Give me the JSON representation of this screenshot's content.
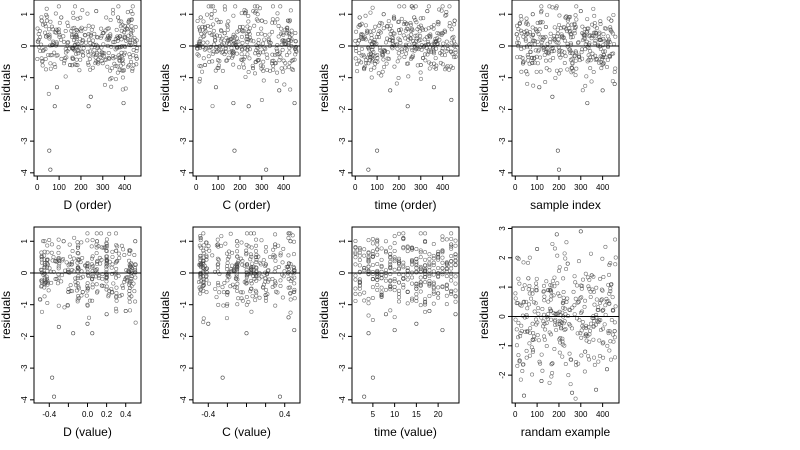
{
  "chart_data": [
    {
      "type": "scatter",
      "xlabel": "D (order)",
      "ylabel": "residuals",
      "xlim": [
        -15,
        475
      ],
      "ylim": [
        -4.1,
        1.45
      ],
      "xticks": [
        0,
        100,
        200,
        300,
        400
      ],
      "yticks": [
        -4,
        -3,
        -2,
        -1,
        0,
        1
      ],
      "hline": 0,
      "points": [
        [
          20,
          0.8
        ],
        [
          40,
          0.3
        ],
        [
          55,
          -3.3
        ],
        [
          60,
          -3.9
        ],
        [
          80,
          -1.9
        ],
        [
          90,
          -1.3
        ],
        [
          110,
          0.9
        ],
        [
          150,
          -0.6
        ],
        [
          180,
          0.5
        ],
        [
          210,
          -0.3
        ],
        [
          235,
          -1.9
        ],
        [
          245,
          -1.6
        ],
        [
          270,
          1.1
        ],
        [
          300,
          0.4
        ],
        [
          330,
          -0.4
        ],
        [
          370,
          0.9
        ],
        [
          395,
          -1.8
        ],
        [
          430,
          0.5
        ],
        [
          455,
          -0.4
        ]
      ]
    },
    {
      "type": "scatter",
      "xlabel": "C (order)",
      "ylabel": "residuals",
      "xlim": [
        -15,
        475
      ],
      "ylim": [
        -4.1,
        1.45
      ],
      "xticks": [
        0,
        100,
        200,
        300,
        400
      ],
      "yticks": [
        -4,
        -3,
        -2,
        -1,
        0,
        1
      ],
      "hline": 0,
      "points": [
        [
          20,
          0.9
        ],
        [
          40,
          -0.6
        ],
        [
          70,
          1.0
        ],
        [
          90,
          -1.3
        ],
        [
          130,
          0.4
        ],
        [
          170,
          -1.8
        ],
        [
          175,
          -3.3
        ],
        [
          200,
          0.6
        ],
        [
          240,
          -1.9
        ],
        [
          260,
          -0.7
        ],
        [
          300,
          0.8
        ],
        [
          320,
          -3.9
        ],
        [
          340,
          0.1
        ],
        [
          380,
          -1.4
        ],
        [
          420,
          0.8
        ],
        [
          450,
          -1.8
        ]
      ]
    },
    {
      "type": "scatter",
      "xlabel": "time (order)",
      "ylabel": "residuals",
      "xlim": [
        -15,
        475
      ],
      "ylim": [
        -4.1,
        1.45
      ],
      "xticks": [
        0,
        100,
        200,
        300,
        400
      ],
      "yticks": [
        -4,
        -3,
        -2,
        -1,
        0,
        1
      ],
      "hline": 0,
      "points": [
        [
          20,
          0.9
        ],
        [
          40,
          -0.7
        ],
        [
          60,
          -3.9
        ],
        [
          100,
          -3.3
        ],
        [
          130,
          1.0
        ],
        [
          160,
          -1.4
        ],
        [
          200,
          0.5
        ],
        [
          240,
          -1.9
        ],
        [
          270,
          0.9
        ],
        [
          300,
          -0.6
        ],
        [
          330,
          1.1
        ],
        [
          360,
          -1.3
        ],
        [
          400,
          0.4
        ],
        [
          440,
          -1.7
        ],
        [
          455,
          0.8
        ]
      ]
    },
    {
      "type": "scatter",
      "xlabel": "sample index",
      "ylabel": "residuals",
      "xlim": [
        -15,
        475
      ],
      "ylim": [
        -4.1,
        1.45
      ],
      "xticks": [
        0,
        100,
        200,
        300,
        400
      ],
      "yticks": [
        -4,
        -3,
        -2,
        -1,
        0,
        1
      ],
      "hline": 0,
      "points": [
        [
          20,
          0.7
        ],
        [
          50,
          -0.8
        ],
        [
          80,
          1.0
        ],
        [
          110,
          -1.3
        ],
        [
          140,
          0.6
        ],
        [
          170,
          -1.6
        ],
        [
          195,
          -3.3
        ],
        [
          200,
          -3.9
        ],
        [
          230,
          0.9
        ],
        [
          260,
          -0.7
        ],
        [
          300,
          1.1
        ],
        [
          330,
          -1.8
        ],
        [
          370,
          0.4
        ],
        [
          400,
          -1.4
        ],
        [
          440,
          0.8
        ],
        [
          455,
          -1.2
        ]
      ]
    },
    {
      "type": "scatter",
      "xlabel": "D (value)",
      "ylabel": "residuals",
      "xlim": [
        -0.56,
        0.56
      ],
      "ylim": [
        -4.1,
        1.45
      ],
      "xticks": [
        -0.4,
        -0.2,
        0.0,
        0.2,
        0.4
      ],
      "xticklabels": [
        "-0.4",
        "",
        "0.0",
        "0.2",
        "0.4"
      ],
      "yticks": [
        -4,
        -3,
        -2,
        -1,
        0,
        1
      ],
      "hline": 0,
      "points": [
        [
          -0.48,
          0.5
        ],
        [
          -0.44,
          -0.3
        ],
        [
          -0.37,
          -3.3
        ],
        [
          -0.35,
          -3.9
        ],
        [
          -0.3,
          -1.7
        ],
        [
          -0.25,
          1.0
        ],
        [
          -0.2,
          -0.6
        ],
        [
          -0.15,
          -1.9
        ],
        [
          -0.1,
          0.8
        ],
        [
          -0.05,
          -0.6
        ],
        [
          0.0,
          -1.6
        ],
        [
          0.05,
          -1.9
        ],
        [
          0.1,
          1.0
        ],
        [
          0.15,
          -0.4
        ],
        [
          0.2,
          -1.3
        ],
        [
          0.3,
          0.7
        ],
        [
          0.4,
          -1.2
        ],
        [
          0.5,
          1.0
        ]
      ]
    },
    {
      "type": "scatter",
      "xlabel": "C (value)",
      "ylabel": "residuals",
      "xlim": [
        -0.56,
        0.56
      ],
      "ylim": [
        -4.1,
        1.45
      ],
      "xticks": [
        -0.4,
        -0.2,
        0.0,
        0.2,
        0.4
      ],
      "xticklabels": [
        "-0.4",
        "",
        "",
        "",
        "0.4"
      ],
      "yticks": [
        -4,
        -3,
        -2,
        -1,
        0,
        1
      ],
      "hline": 0,
      "points": [
        [
          -0.48,
          1.1
        ],
        [
          -0.45,
          -0.4
        ],
        [
          -0.4,
          -1.6
        ],
        [
          -0.3,
          0.9
        ],
        [
          -0.25,
          -3.3
        ],
        [
          -0.2,
          -0.6
        ],
        [
          -0.1,
          1.0
        ],
        [
          0.0,
          -1.9
        ],
        [
          0.1,
          0.5
        ],
        [
          0.2,
          -0.7
        ],
        [
          0.3,
          0.9
        ],
        [
          0.35,
          -3.9
        ],
        [
          0.44,
          -1.4
        ],
        [
          0.46,
          1.0
        ],
        [
          0.5,
          -1.8
        ]
      ]
    },
    {
      "type": "scatter",
      "xlabel": "time (value)",
      "ylabel": "residuals",
      "xlim": [
        0.2,
        24.8
      ],
      "ylim": [
        -4.1,
        1.45
      ],
      "xticks": [
        5,
        10,
        15,
        20
      ],
      "yticks": [
        -4,
        -3,
        -2,
        -1,
        0,
        1
      ],
      "hline": 0,
      "points": [
        [
          1,
          0.8
        ],
        [
          2,
          -0.4
        ],
        [
          3,
          -3.9
        ],
        [
          4,
          -1.9
        ],
        [
          5,
          -3.3
        ],
        [
          6,
          1.0
        ],
        [
          7,
          -0.7
        ],
        [
          8,
          -1.3
        ],
        [
          9,
          0.6
        ],
        [
          10,
          -1.8
        ],
        [
          11,
          -0.3
        ],
        [
          12,
          1.1
        ],
        [
          13,
          -0.6
        ],
        [
          14,
          0.8
        ],
        [
          15,
          -1.6
        ],
        [
          16,
          -0.4
        ],
        [
          17,
          1.0
        ],
        [
          18,
          -1.2
        ],
        [
          20,
          0.6
        ],
        [
          21,
          -1.8
        ],
        [
          22,
          -0.5
        ],
        [
          23,
          0.9
        ],
        [
          24,
          -1.3
        ]
      ]
    },
    {
      "type": "scatter",
      "xlabel": "randam example",
      "ylabel": "residuals",
      "xlim": [
        -15,
        475
      ],
      "ylim": [
        -2.95,
        3.05
      ],
      "xticks": [
        0,
        100,
        200,
        300,
        400
      ],
      "yticks": [
        -2,
        -1,
        0,
        1,
        2,
        3
      ],
      "hline": 0,
      "points": [
        [
          10,
          2.0
        ],
        [
          20,
          -1.5
        ],
        [
          40,
          -2.7
        ],
        [
          60,
          1.3
        ],
        [
          80,
          -0.8
        ],
        [
          100,
          2.3
        ],
        [
          120,
          -2.2
        ],
        [
          150,
          0.9
        ],
        [
          170,
          -1.6
        ],
        [
          190,
          2.8
        ],
        [
          210,
          -0.4
        ],
        [
          240,
          1.8
        ],
        [
          260,
          -2.6
        ],
        [
          290,
          0.5
        ],
        [
          300,
          2.9
        ],
        [
          320,
          -1.2
        ],
        [
          350,
          1.4
        ],
        [
          370,
          -2.5
        ],
        [
          400,
          0.2
        ],
        [
          420,
          -1.8
        ],
        [
          440,
          1.1
        ],
        [
          455,
          -0.5
        ]
      ]
    }
  ]
}
